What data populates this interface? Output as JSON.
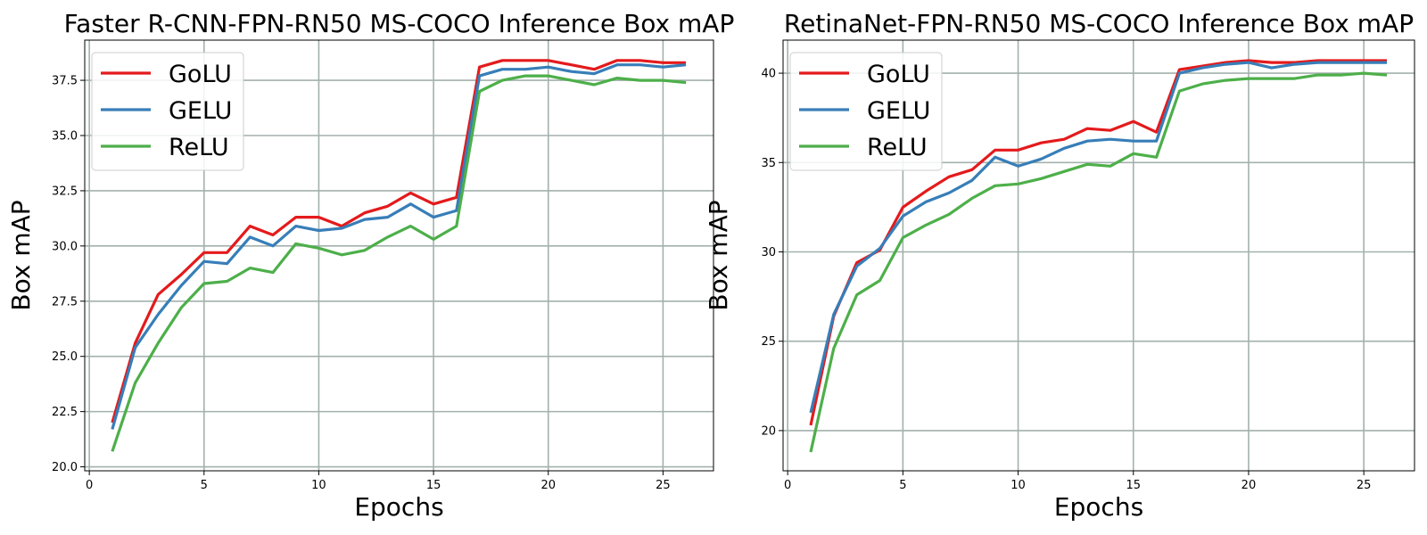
{
  "chart_data": [
    {
      "type": "line",
      "title": "Faster R-CNN-FPN-RN50 MS-COCO Inference Box mAP",
      "xlabel": "Epochs",
      "ylabel": "Box mAP",
      "xlim": [
        -0.2,
        27.2
      ],
      "ylim": [
        19.82,
        39.32
      ],
      "xticks": [
        0,
        5,
        10,
        15,
        20,
        25
      ],
      "xtick_labels": [
        "0",
        "5",
        "10",
        "15",
        "20",
        "25"
      ],
      "yticks": [
        20.0,
        22.5,
        25.0,
        27.5,
        30.0,
        32.5,
        35.0,
        37.5
      ],
      "ytick_labels": [
        "20.0",
        "22.5",
        "25.0",
        "27.5",
        "30.0",
        "32.5",
        "35.0",
        "37.5"
      ],
      "grid": true,
      "legend_position": "top-left",
      "x": [
        1,
        2,
        3,
        4,
        5,
        6,
        7,
        8,
        9,
        10,
        11,
        12,
        13,
        14,
        15,
        16,
        17,
        18,
        19,
        20,
        21,
        22,
        23,
        24,
        25,
        26
      ],
      "series": [
        {
          "name": "GoLU",
          "color": "#e41a1c",
          "values": [
            22.0,
            25.6,
            27.8,
            28.7,
            29.7,
            29.7,
            30.9,
            30.5,
            31.3,
            31.3,
            30.9,
            31.5,
            31.8,
            32.4,
            31.9,
            32.2,
            38.1,
            38.4,
            38.4,
            38.4,
            38.2,
            38.0,
            38.4,
            38.4,
            38.3,
            38.3
          ]
        },
        {
          "name": "GELU",
          "color": "#377eb8",
          "values": [
            21.7,
            25.4,
            26.9,
            28.2,
            29.3,
            29.2,
            30.4,
            30.0,
            30.9,
            30.7,
            30.8,
            31.2,
            31.3,
            31.9,
            31.3,
            31.6,
            37.7,
            38.0,
            38.0,
            38.1,
            37.9,
            37.8,
            38.2,
            38.2,
            38.1,
            38.2
          ]
        },
        {
          "name": "ReLU",
          "color": "#4daf4a",
          "values": [
            20.7,
            23.8,
            25.6,
            27.2,
            28.3,
            28.4,
            29.0,
            28.8,
            30.1,
            29.9,
            29.6,
            29.8,
            30.4,
            30.9,
            30.3,
            30.9,
            37.0,
            37.5,
            37.7,
            37.7,
            37.5,
            37.3,
            37.6,
            37.5,
            37.5,
            37.4
          ]
        }
      ]
    },
    {
      "type": "line",
      "title": "RetinaNet-FPN-RN50 MS-COCO Inference Box mAP",
      "xlabel": "Epochs",
      "ylabel": "Box mAP",
      "xlim": [
        -0.2,
        27.2
      ],
      "ylim": [
        17.75,
        41.85
      ],
      "xticks": [
        0,
        5,
        10,
        15,
        20,
        25
      ],
      "xtick_labels": [
        "0",
        "5",
        "10",
        "15",
        "20",
        "25"
      ],
      "yticks": [
        20,
        25,
        30,
        35,
        40
      ],
      "ytick_labels": [
        "20",
        "25",
        "30",
        "35",
        "40"
      ],
      "grid": true,
      "legend_position": "top-left",
      "x": [
        1,
        2,
        3,
        4,
        5,
        6,
        7,
        8,
        9,
        10,
        11,
        12,
        13,
        14,
        15,
        16,
        17,
        18,
        19,
        20,
        21,
        22,
        23,
        24,
        25,
        26
      ],
      "series": [
        {
          "name": "GoLU",
          "color": "#e41a1c",
          "values": [
            20.3,
            26.4,
            29.4,
            30.1,
            32.5,
            33.4,
            34.2,
            34.6,
            35.7,
            35.7,
            36.1,
            36.3,
            36.9,
            36.8,
            37.3,
            36.7,
            40.2,
            40.4,
            40.6,
            40.7,
            40.6,
            40.6,
            40.7,
            40.7,
            40.7,
            40.7
          ]
        },
        {
          "name": "GELU",
          "color": "#377eb8",
          "values": [
            21.0,
            26.5,
            29.2,
            30.2,
            32.0,
            32.8,
            33.3,
            34.0,
            35.3,
            34.8,
            35.2,
            35.8,
            36.2,
            36.3,
            36.2,
            36.2,
            40.0,
            40.3,
            40.5,
            40.6,
            40.3,
            40.5,
            40.6,
            40.6,
            40.6,
            40.6
          ]
        },
        {
          "name": "ReLU",
          "color": "#4daf4a",
          "values": [
            18.8,
            24.6,
            27.6,
            28.4,
            30.8,
            31.5,
            32.1,
            33.0,
            33.7,
            33.8,
            34.1,
            34.5,
            34.9,
            34.8,
            35.5,
            35.3,
            39.0,
            39.4,
            39.6,
            39.7,
            39.7,
            39.7,
            39.9,
            39.9,
            40.0,
            39.9
          ]
        }
      ]
    }
  ]
}
